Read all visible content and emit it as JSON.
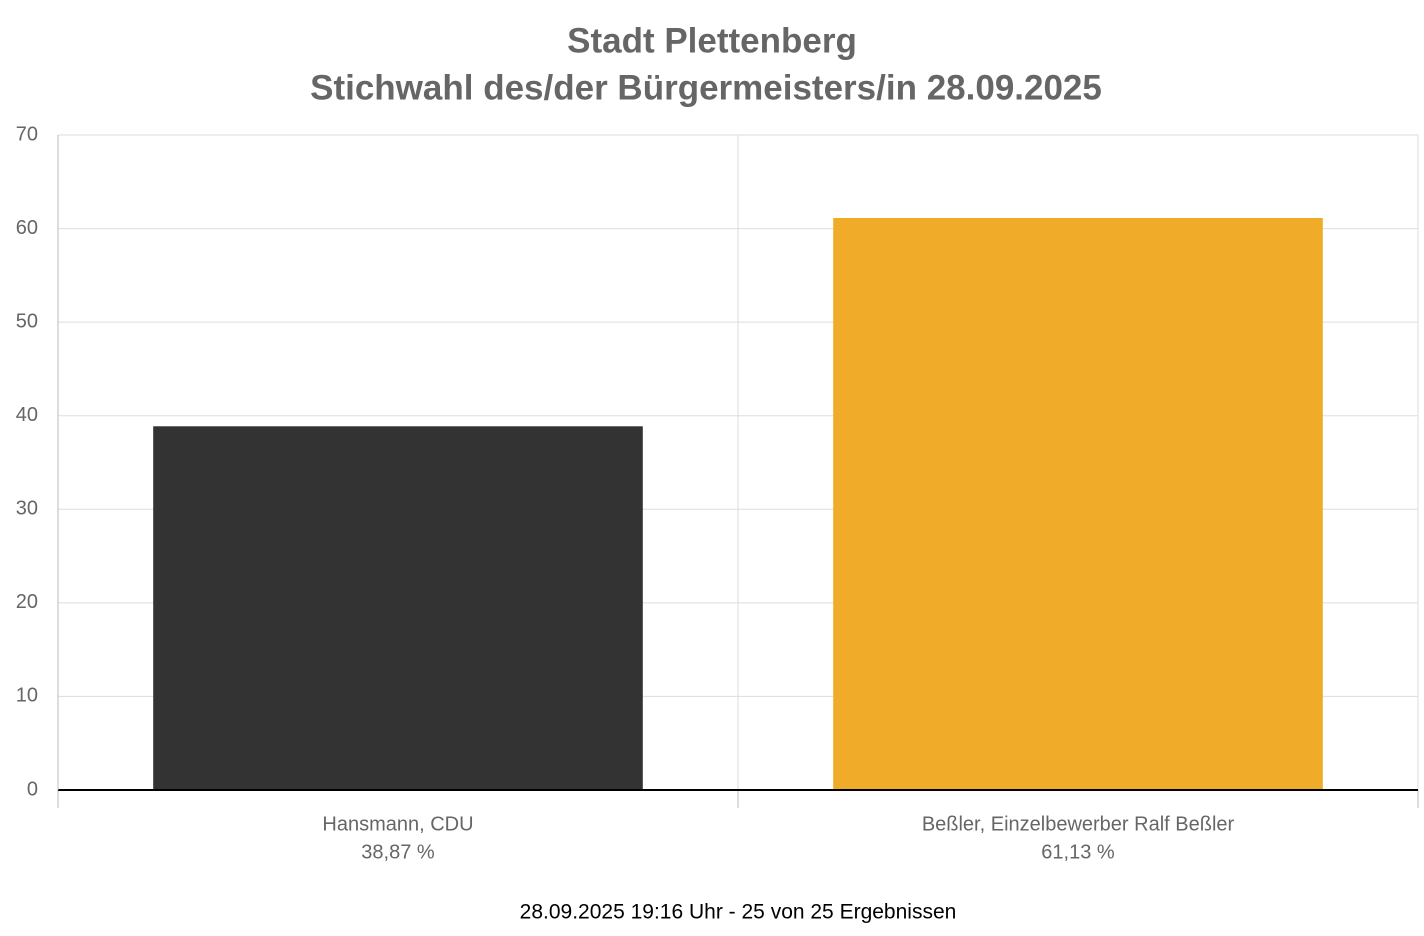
{
  "chart_data": {
    "type": "bar",
    "title": "Stadt Plettenberg",
    "subtitle": "Stichwahl des/der Bürgermeisters/in 28.09.2025",
    "categories": [
      "Hansmann, CDU",
      "Beßler, Einzelbewerber Ralf Beßler"
    ],
    "values": [
      38.87,
      61.13
    ],
    "value_labels": [
      "38,87 %",
      "61,13 %"
    ],
    "colors": [
      "#333333",
      "#f0ab28"
    ],
    "ylim": [
      0,
      70
    ],
    "yticks": [
      0,
      10,
      20,
      30,
      40,
      50,
      60,
      70
    ],
    "grid": true,
    "note": "28.09.2025 19:16 Uhr - 25 von 25 Ergebnissen"
  }
}
